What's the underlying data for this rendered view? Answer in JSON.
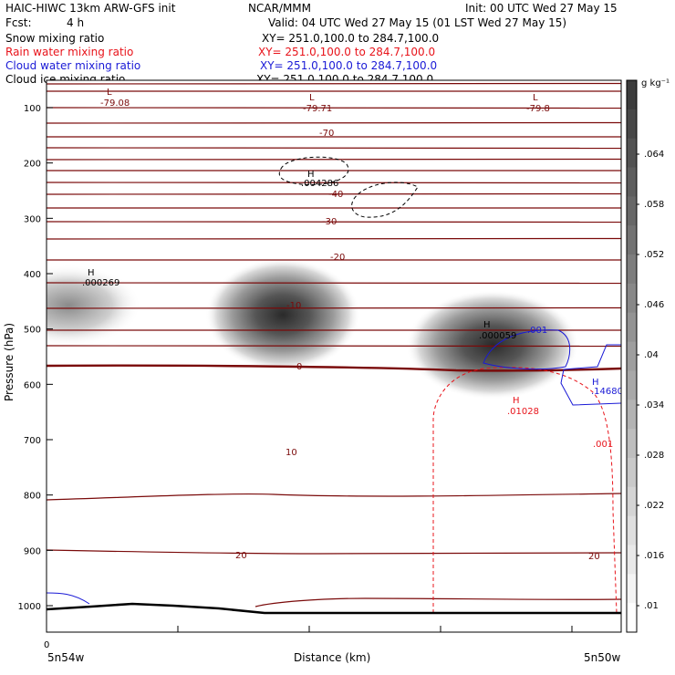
{
  "header": {
    "model": "HAIC-HIWC 13km ARW-GFS init",
    "org": "NCAR/MMM",
    "init": "Init: 00 UTC Wed 27 May 15",
    "fcst_label": "Fcst:",
    "fcst_value": "4 h",
    "valid": "Valid: 04 UTC Wed 27 May 15 (01 LST Wed 27 May 15)"
  },
  "fields": [
    {
      "name": "Snow mixing ratio",
      "xy": "XY= 251.0,100.0 to 284.7,100.0",
      "color": "#000000"
    },
    {
      "name": "Rain water mixing ratio",
      "xy": "XY= 251.0,100.0 to 284.7,100.0",
      "color": "#e8141b"
    },
    {
      "name": "Cloud water mixing ratio",
      "xy": "XY= 251.0,100.0 to 284.7,100.0",
      "color": "#1a1ad6"
    },
    {
      "name": "Cloud ice mixing ratio",
      "xy": "XY= 251.0,100.0 to 284.7,100.0",
      "color": "#000000"
    }
  ],
  "chart_data": {
    "type": "cross-section contour",
    "ylabel": "Pressure (hPa)",
    "xlabel": "Distance (km)",
    "x_tick_labels": [
      "0"
    ],
    "x_left_label": "5n54w",
    "x_right_label": "5n50w",
    "yticks": [
      100,
      200,
      300,
      400,
      500,
      600,
      700,
      800,
      900,
      1000
    ],
    "ylim": [
      50,
      1050
    ],
    "colorbar": {
      "unit": "g kg⁻¹",
      "levels": [
        ".01",
        ".016",
        ".022",
        ".028",
        ".034",
        ".04",
        ".046",
        ".052",
        ".058",
        ".064"
      ]
    },
    "temperature_labels": [
      "-70",
      "-40",
      "-30",
      "-20",
      "-10",
      "0",
      "10",
      "20",
      "20"
    ],
    "extrema": [
      {
        "kind": "L",
        "value": "-79.08"
      },
      {
        "kind": "L",
        "value": "-79.71"
      },
      {
        "kind": "L",
        "value": "-79.8"
      },
      {
        "kind": "H",
        "value": ".004286"
      },
      {
        "kind": "H",
        "value": ".000269"
      },
      {
        "kind": "H",
        "value": ".000059"
      },
      {
        "kind": "H",
        "value": ".01028"
      },
      {
        "kind": "H",
        "value": ".14680"
      }
    ],
    "contour_labels": [
      {
        "text": ".001",
        "color": "#1a1ad6"
      },
      {
        "text": ".001",
        "color": "#e8141b"
      }
    ],
    "colors": {
      "temperature": "#7a0a0a",
      "rain": "#e8141b",
      "cloud_water": "#1a1ad6",
      "terrain": "#000000"
    }
  }
}
